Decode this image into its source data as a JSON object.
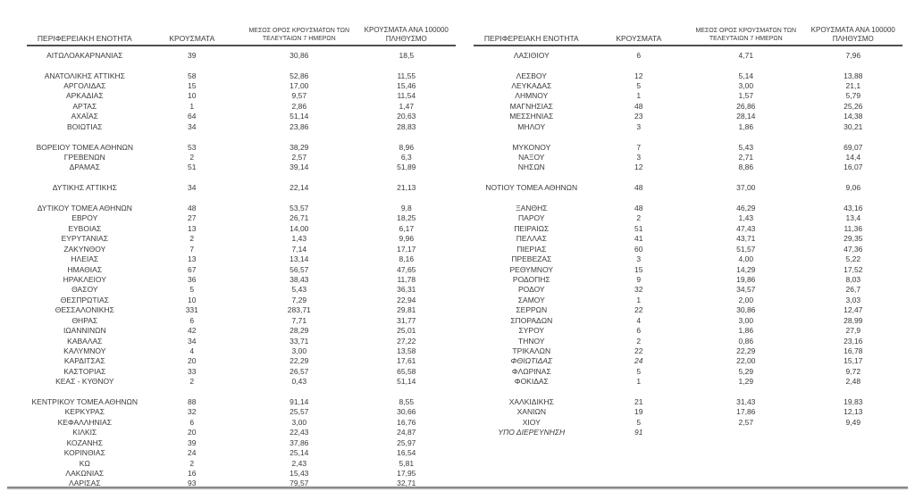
{
  "page": {
    "background": "#ffffff",
    "text_color": "#3a3a3a",
    "rule_color": "#4f4f4f"
  },
  "columns": {
    "region": "ΠΕΡΙΦΕΡΕΙΑΚΗ ΕΝΟΤΗΤΑ",
    "cases": "ΚΡΟΥΣΜΑΤΑ",
    "avg7_lines": [
      "ΜΕΣΟΣ ΟΡΟΣ ΚΡΟΥΣΜΑΤΩΝ ΤΩΝ",
      "ΤΕΛΕΥΤΑΙΩΝ 7 ΗΜΕΡΩΝ"
    ],
    "per100k_lines": [
      "ΚΡΟΥΣΜΑΤΑ ΑΝΑ 100000",
      "ΠΛΗΘΥΣΜΟ"
    ]
  },
  "tables": [
    {
      "side": "left",
      "rows": [
        {
          "region": "ΑΙΤΩΛΟΑΚΑΡΝΑΝΙΑΣ",
          "cases": "39",
          "avg7": "30,86",
          "per100k": "18,5"
        },
        {
          "blank": true
        },
        {
          "region": "ΑΝΑΤΟΛΙΚΗΣ ΑΤΤΙΚΗΣ",
          "cases": "58",
          "avg7": "52,86",
          "per100k": "11,55"
        },
        {
          "region": "ΑΡΓΟΛΙΔΑΣ",
          "cases": "15",
          "avg7": "17,00",
          "per100k": "15,46"
        },
        {
          "region": "ΑΡΚΑΔΙΑΣ",
          "cases": "10",
          "avg7": "9,57",
          "per100k": "11,54"
        },
        {
          "region": "ΑΡΤΑΣ",
          "cases": "1",
          "avg7": "2,86",
          "per100k": "1,47"
        },
        {
          "region": "ΑΧΑΪΑΣ",
          "cases": "64",
          "avg7": "51,14",
          "per100k": "20,63"
        },
        {
          "region": "ΒΟΙΩΤΙΑΣ",
          "cases": "34",
          "avg7": "23,86",
          "per100k": "28,83"
        },
        {
          "blank": true
        },
        {
          "region": "ΒΟΡΕΙΟΥ ΤΟΜΕΑ ΑΘΗΝΩΝ",
          "cases": "53",
          "avg7": "38,29",
          "per100k": "8,96"
        },
        {
          "region": "ΓΡΕΒΕΝΩΝ",
          "cases": "2",
          "avg7": "2,57",
          "per100k": "6,3"
        },
        {
          "region": "ΔΡΑΜΑΣ",
          "cases": "51",
          "avg7": "39,14",
          "per100k": "51,89"
        },
        {
          "blank": true
        },
        {
          "region": "ΔΥΤΙΚΗΣ ΑΤΤΙΚΗΣ",
          "cases": "34",
          "avg7": "22,14",
          "per100k": "21,13"
        },
        {
          "blank": true
        },
        {
          "region": "ΔΥΤΙΚΟΥ ΤΟΜΕΑ ΑΘΗΝΩΝ",
          "cases": "48",
          "avg7": "53,57",
          "per100k": "9,8"
        },
        {
          "region": "ΕΒΡΟΥ",
          "cases": "27",
          "avg7": "26,71",
          "per100k": "18,25"
        },
        {
          "region": "ΕΥΒΟΙΑΣ",
          "cases": "13",
          "avg7": "14,00",
          "per100k": "6,17"
        },
        {
          "region": "ΕΥΡΥΤΑΝΙΑΣ",
          "cases": "2",
          "avg7": "1,43",
          "per100k": "9,96"
        },
        {
          "region": "ΖΑΚΥΝΘΟΥ",
          "cases": "7",
          "avg7": "7,14",
          "per100k": "17,17"
        },
        {
          "region": "ΗΛΕΙΑΣ",
          "cases": "13",
          "avg7": "13,14",
          "per100k": "8,16"
        },
        {
          "region": "ΗΜΑΘΙΑΣ",
          "cases": "67",
          "avg7": "56,57",
          "per100k": "47,65"
        },
        {
          "region": "ΗΡΑΚΛΕΙΟΥ",
          "cases": "36",
          "avg7": "38,43",
          "per100k": "11,78"
        },
        {
          "region": "ΘΑΣΟΥ",
          "cases": "5",
          "avg7": "5,43",
          "per100k": "36,31"
        },
        {
          "region": "ΘΕΣΠΡΩΤΙΑΣ",
          "cases": "10",
          "avg7": "7,29",
          "per100k": "22,94"
        },
        {
          "region": "ΘΕΣΣΑΛΟΝΙΚΗΣ",
          "cases": "331",
          "avg7": "283,71",
          "per100k": "29,81"
        },
        {
          "region": "ΘΗΡΑΣ",
          "cases": "6",
          "avg7": "7,71",
          "per100k": "31,77"
        },
        {
          "region": "ΙΩΑΝΝΙΝΩΝ",
          "cases": "42",
          "avg7": "28,29",
          "per100k": "25,01"
        },
        {
          "region": "ΚΑΒΑΛΑΣ",
          "cases": "34",
          "avg7": "33,71",
          "per100k": "27,22"
        },
        {
          "region": "ΚΑΛΥΜΝΟΥ",
          "cases": "4",
          "avg7": "3,00",
          "per100k": "13,58"
        },
        {
          "region": "ΚΑΡΔΙΤΣΑΣ",
          "cases": "20",
          "avg7": "22,29",
          "per100k": "17,61"
        },
        {
          "region": "ΚΑΣΤΟΡΙΑΣ",
          "cases": "33",
          "avg7": "26,57",
          "per100k": "65,58"
        },
        {
          "region": "ΚΕΑΣ - ΚΥΘΝΟΥ",
          "cases": "2",
          "avg7": "0,43",
          "per100k": "51,14"
        },
        {
          "blank": true
        },
        {
          "region": "ΚΕΝΤΡΙΚΟΥ ΤΟΜΕΑ ΑΘΗΝΩΝ",
          "cases": "88",
          "avg7": "91,14",
          "per100k": "8,55"
        },
        {
          "region": "ΚΕΡΚΥΡΑΣ",
          "cases": "32",
          "avg7": "25,57",
          "per100k": "30,66"
        },
        {
          "region": "ΚΕΦΑΛΛΗΝΙΑΣ",
          "cases": "6",
          "avg7": "3,00",
          "per100k": "16,76"
        },
        {
          "region": "ΚΙΛΚΙΣ",
          "cases": "20",
          "avg7": "22,43",
          "per100k": "24,87"
        },
        {
          "region": "ΚΟΖΑΝΗΣ",
          "cases": "39",
          "avg7": "37,86",
          "per100k": "25,97"
        },
        {
          "region": "ΚΟΡΙΝΘΙΑΣ",
          "cases": "24",
          "avg7": "25,14",
          "per100k": "16,54"
        },
        {
          "region": "ΚΩ",
          "cases": "2",
          "avg7": "2,43",
          "per100k": "5,81"
        },
        {
          "region": "ΛΑΚΩΝΙΑΣ",
          "cases": "16",
          "avg7": "15,43",
          "per100k": "17,95"
        },
        {
          "region": "ΛΑΡΙΣΑΣ",
          "cases": "93",
          "avg7": "79,57",
          "per100k": "32,71"
        }
      ]
    },
    {
      "side": "right",
      "rows": [
        {
          "region": "ΛΑΣΙΘΙΟΥ",
          "cases": "6",
          "avg7": "4,71",
          "per100k": "7,96"
        },
        {
          "blank": true
        },
        {
          "region": "ΛΕΣΒΟΥ",
          "cases": "12",
          "avg7": "5,14",
          "per100k": "13,88"
        },
        {
          "region": "ΛΕΥΚΑΔΑΣ",
          "cases": "5",
          "avg7": "3,00",
          "per100k": "21,1"
        },
        {
          "region": "ΛΗΜΝΟΥ",
          "cases": "1",
          "avg7": "1,57",
          "per100k": "5,79"
        },
        {
          "region": "ΜΑΓΝΗΣΙΑΣ",
          "cases": "48",
          "avg7": "26,86",
          "per100k": "25,26"
        },
        {
          "region": "ΜΕΣΣΗΝΙΑΣ",
          "cases": "23",
          "avg7": "28,14",
          "per100k": "14,38"
        },
        {
          "region": "ΜΗΛΟΥ",
          "cases": "3",
          "avg7": "1,86",
          "per100k": "30,21"
        },
        {
          "blank": true
        },
        {
          "region": "ΜΥΚΟΝΟΥ",
          "cases": "7",
          "avg7": "5,43",
          "per100k": "69,07"
        },
        {
          "region": "ΝΑΞΟΥ",
          "cases": "3",
          "avg7": "2,71",
          "per100k": "14,4"
        },
        {
          "region": "ΝΗΣΩΝ",
          "cases": "12",
          "avg7": "8,86",
          "per100k": "16,07"
        },
        {
          "blank": true
        },
        {
          "region": "ΝΟΤΙΟΥ ΤΟΜΕΑ ΑΘΗΝΩΝ",
          "cases": "48",
          "avg7": "37,00",
          "per100k": "9,06"
        },
        {
          "blank": true
        },
        {
          "region": "ΞΑΝΘΗΣ",
          "cases": "48",
          "avg7": "46,29",
          "per100k": "43,16"
        },
        {
          "region": "ΠΑΡΟΥ",
          "cases": "2",
          "avg7": "1,43",
          "per100k": "13,4"
        },
        {
          "region": "ΠΕΙΡΑΙΩΣ",
          "cases": "51",
          "avg7": "47,43",
          "per100k": "11,36"
        },
        {
          "region": "ΠΕΛΛΑΣ",
          "cases": "41",
          "avg7": "43,71",
          "per100k": "29,35"
        },
        {
          "region": "ΠΙΕΡΙΑΣ",
          "cases": "60",
          "avg7": "51,57",
          "per100k": "47,36"
        },
        {
          "region": "ΠΡΕΒΕΖΑΣ",
          "cases": "3",
          "avg7": "4,00",
          "per100k": "5,22"
        },
        {
          "region": "ΡΕΘΥΜΝΟΥ",
          "cases": "15",
          "avg7": "14,29",
          "per100k": "17,52"
        },
        {
          "region": "ΡΟΔΟΠΗΣ",
          "cases": "9",
          "avg7": "19,86",
          "per100k": "8,03"
        },
        {
          "region": "ΡΟΔΟΥ",
          "cases": "32",
          "avg7": "34,57",
          "per100k": "26,7"
        },
        {
          "region": "ΣΑΜΟΥ",
          "cases": "1",
          "avg7": "2,00",
          "per100k": "3,03"
        },
        {
          "region": "ΣΕΡΡΩΝ",
          "cases": "22",
          "avg7": "30,86",
          "per100k": "12,47"
        },
        {
          "region": "ΣΠΟΡΑΔΩΝ",
          "cases": "4",
          "avg7": "3,00",
          "per100k": "28,99"
        },
        {
          "region": "ΣΥΡΟΥ",
          "cases": "6",
          "avg7": "1,86",
          "per100k": "27,9"
        },
        {
          "region": "ΤΗΝΟΥ",
          "cases": "2",
          "avg7": "0,86",
          "per100k": "23,16"
        },
        {
          "region": "ΤΡΙΚΑΛΩΝ",
          "cases": "22",
          "avg7": "22,29",
          "per100k": "16,78"
        },
        {
          "region": "ΦΘΙΩΤΙΔΑΣ",
          "cases": "24",
          "avg7": "22,00",
          "per100k": "15,17",
          "italic": true
        },
        {
          "region": "ΦΛΩΡΙΝΑΣ",
          "cases": "5",
          "avg7": "5,29",
          "per100k": "9,72"
        },
        {
          "region": "ΦΟΚΙΔΑΣ",
          "cases": "1",
          "avg7": "1,29",
          "per100k": "2,48"
        },
        {
          "blank": true
        },
        {
          "region": "ΧΑΛΚΙΔΙΚΗΣ",
          "cases": "21",
          "avg7": "31,43",
          "per100k": "19,83"
        },
        {
          "region": "ΧΑΝΙΩΝ",
          "cases": "19",
          "avg7": "17,86",
          "per100k": "12,13"
        },
        {
          "region": "ΧΙΟΥ",
          "cases": "5",
          "avg7": "2,57",
          "per100k": "9,49"
        },
        {
          "region": "ΥΠΟ ΔΙΕΡΕΥΝΗΣΗ",
          "cases": "91",
          "avg7": "",
          "per100k": "",
          "italic": true
        }
      ]
    }
  ]
}
